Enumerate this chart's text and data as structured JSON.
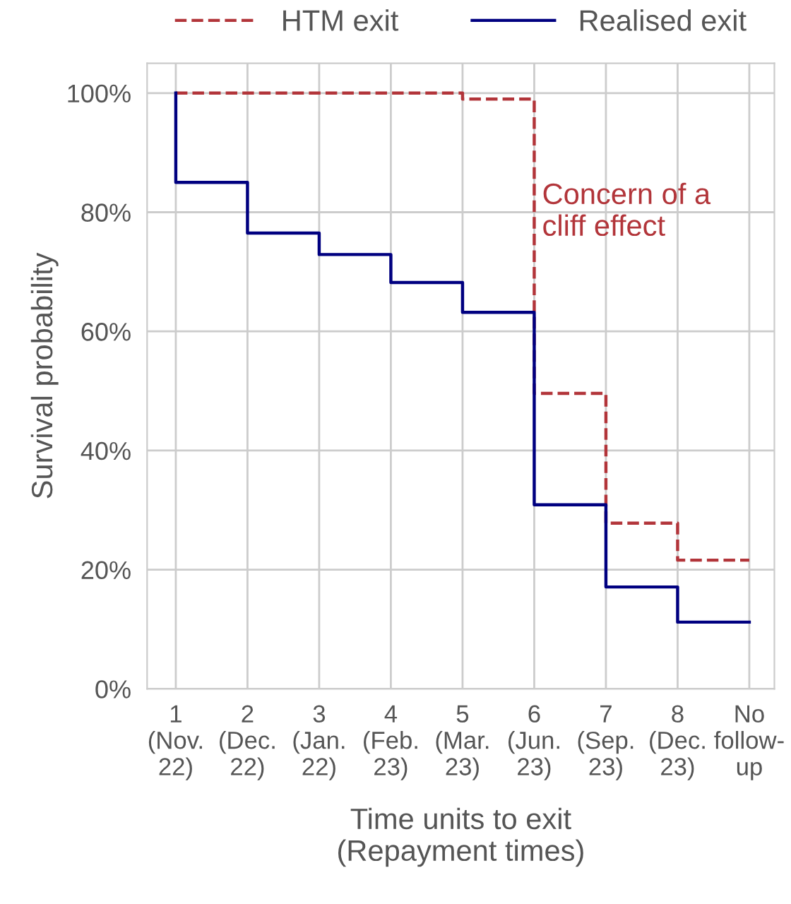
{
  "chart_data": {
    "type": "step",
    "xlabel": "Time units to exit\n(Repayment times)",
    "ylabel": "Survival probability",
    "categories": [
      "1\n(Nov.\n22)",
      "2\n(Dec.\n22)",
      "3\n(Jan.\n22)",
      "4\n(Feb.\n23)",
      "5\n(Mar.\n23)",
      "6\n(Jun.\n23)",
      "7\n(Sep.\n23)",
      "8\n(Dec.\n23)",
      "No\nfollow-\nup"
    ],
    "ylim": [
      0,
      105
    ],
    "yticks": [
      {
        "value": 0,
        "label": "0%"
      },
      {
        "value": 20,
        "label": "20%"
      },
      {
        "value": 40,
        "label": "40%"
      },
      {
        "value": 60,
        "label": "60%"
      },
      {
        "value": 80,
        "label": "80%"
      },
      {
        "value": 100,
        "label": "100%"
      }
    ],
    "series": [
      {
        "name": "HTM exit",
        "color": "#b2353a",
        "line_style": "dashed",
        "values": [
          100,
          100,
          100,
          100,
          99,
          49.6,
          27.8,
          21.6,
          21.6
        ]
      },
      {
        "name": "Realised exit",
        "color": "#000080",
        "line_style": "solid",
        "x": [
          "1\n(Nov.\n22)",
          "1\n(Nov.\n22)",
          "2\n(Dec.\n22)",
          "3\n(Jan.\n22)",
          "4\n(Feb.\n23)",
          "5\n(Mar.\n23)",
          "6\n(Jun.\n23)",
          "7\n(Sep.\n23)",
          "8\n(Dec.\n23)",
          "No\nfollow-\nup"
        ],
        "values": [
          100,
          85,
          76.5,
          72.9,
          68.2,
          63.2,
          30.9,
          17.1,
          11.2,
          11.2
        ]
      }
    ],
    "annotations": [
      {
        "text": "Concern of a\ncliff effect",
        "x": "6\n(Jun.\n23)",
        "y": 80
      }
    ],
    "grid": true,
    "legend": "top"
  }
}
